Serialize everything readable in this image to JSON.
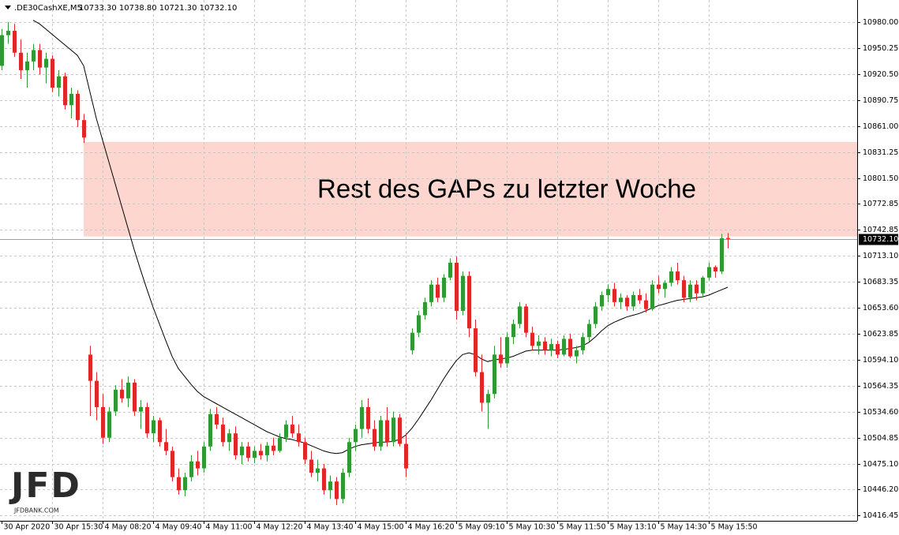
{
  "chart_data": {
    "type": "candlestick",
    "header": {
      "symbol": ".DE30CashXE,M5",
      "quote": "10733.30 10738.80 10721.30 10732.10"
    },
    "logo": {
      "text": "JFD",
      "site": "JFDBANK.COM"
    },
    "bull_color": "#2f9a35",
    "bear_color": "#e3262c",
    "ma_color": "#000000",
    "zone_color": "#fdd6d0",
    "grid": true,
    "xlim": [
      -0.25,
      135.5
    ],
    "ylim": [
      10410.1,
      11005.2
    ],
    "xticks": [
      {
        "value": 0,
        "label": "30 Apr 2020"
      },
      {
        "value": 8,
        "label": "30 Apr 15:30"
      },
      {
        "value": 16,
        "label": "4 May 08:20"
      },
      {
        "value": 24,
        "label": "4 May 09:40"
      },
      {
        "value": 32,
        "label": "4 May 11:00"
      },
      {
        "value": 40,
        "label": "4 May 12:20"
      },
      {
        "value": 48,
        "label": "4 May 13:40"
      },
      {
        "value": 56,
        "label": "4 May 15:00"
      },
      {
        "value": 64,
        "label": "4 May 16:20"
      },
      {
        "value": 72,
        "label": "5 May 09:10"
      },
      {
        "value": 80,
        "label": "5 May 10:30"
      },
      {
        "value": 88,
        "label": "5 May 11:50"
      },
      {
        "value": 96,
        "label": "5 May 13:10"
      },
      {
        "value": 104,
        "label": "5 May 14:30"
      },
      {
        "value": 112,
        "label": "5 May 15:50"
      }
    ],
    "yticks": [
      {
        "value": 10980,
        "label": "10980.00"
      },
      10950.25,
      {
        "value": 10920.5,
        "label": "10920.50"
      },
      10890.75,
      {
        "value": 10861,
        "label": "10861.00"
      },
      10831.25,
      {
        "value": 10801.5,
        "label": "10801.50"
      },
      10772.85,
      10742.85,
      {
        "value": 10713.1,
        "label": "10713.10"
      },
      10683.35,
      {
        "value": 10653.6,
        "label": "10653.60"
      },
      10623.85,
      {
        "value": 10594.1,
        "label": "10594.10"
      },
      10564.35,
      {
        "value": 10534.6,
        "label": "10534.60"
      },
      10504.85,
      {
        "value": 10475.1,
        "label": "10475.10"
      },
      {
        "value": 10446.2,
        "label": "10446.20"
      },
      10416.45
    ],
    "last_price": {
      "value": 10732.1,
      "label": "10732.10"
    },
    "zone": {
      "label": "Rest des GAPs zu letzter Woche",
      "range": [
        10735,
        10843
      ],
      "from_candle": 13
    },
    "ohlc": [
      [
        10930,
        10972,
        10925,
        10965
      ],
      [
        10965,
        10980,
        10955,
        10970
      ],
      [
        10970,
        10978,
        10940,
        10945
      ],
      [
        10945,
        10960,
        10915,
        10925
      ],
      [
        10925,
        10945,
        10905,
        10935
      ],
      [
        10935,
        10955,
        10925,
        10948
      ],
      [
        10948,
        10955,
        10920,
        10928
      ],
      [
        10928,
        10945,
        10910,
        10938
      ],
      [
        10938,
        10942,
        10900,
        10905
      ],
      [
        10905,
        10925,
        10895,
        10918
      ],
      [
        10918,
        10922,
        10880,
        10885
      ],
      [
        10885,
        10905,
        10870,
        10898
      ],
      [
        10898,
        10902,
        10860,
        10868
      ],
      [
        10868,
        10875,
        10842,
        10848
      ],
      [
        10600,
        10610,
        10530,
        10570
      ],
      [
        10570,
        10580,
        10525,
        10540
      ],
      [
        10540,
        10555,
        10498,
        10505
      ],
      [
        10505,
        10540,
        10500,
        10535
      ],
      [
        10535,
        10565,
        10530,
        10560
      ],
      [
        10560,
        10572,
        10545,
        10550
      ],
      [
        10550,
        10575,
        10540,
        10568
      ],
      [
        10568,
        10572,
        10530,
        10535
      ],
      [
        10535,
        10548,
        10515,
        10540
      ],
      [
        10540,
        10545,
        10505,
        10510
      ],
      [
        10510,
        10530,
        10500,
        10525
      ],
      [
        10525,
        10528,
        10495,
        10500
      ],
      [
        10500,
        10515,
        10485,
        10490
      ],
      [
        10490,
        10495,
        10455,
        10460
      ],
      [
        10460,
        10470,
        10440,
        10445
      ],
      [
        10445,
        10465,
        10438,
        10460
      ],
      [
        10460,
        10485,
        10455,
        10478
      ],
      [
        10478,
        10490,
        10462,
        10470
      ],
      [
        10470,
        10500,
        10465,
        10495
      ],
      [
        10495,
        10538,
        10490,
        10532
      ],
      [
        10532,
        10540,
        10515,
        10520
      ],
      [
        10520,
        10528,
        10495,
        10500
      ],
      [
        10500,
        10515,
        10490,
        10510
      ],
      [
        10510,
        10518,
        10480,
        10485
      ],
      [
        10485,
        10500,
        10475,
        10495
      ],
      [
        10495,
        10500,
        10478,
        10482
      ],
      [
        10482,
        10495,
        10476,
        10490
      ],
      [
        10490,
        10498,
        10480,
        10485
      ],
      [
        10485,
        10500,
        10478,
        10496
      ],
      [
        10496,
        10505,
        10485,
        10490
      ],
      [
        10490,
        10510,
        10488,
        10505
      ],
      [
        10505,
        10525,
        10500,
        10520
      ],
      [
        10520,
        10530,
        10505,
        10510
      ],
      [
        10510,
        10520,
        10495,
        10500
      ],
      [
        10500,
        10505,
        10475,
        10480
      ],
      [
        10480,
        10490,
        10460,
        10465
      ],
      [
        10465,
        10480,
        10455,
        10470
      ],
      [
        10470,
        10475,
        10440,
        10445
      ],
      [
        10445,
        10462,
        10435,
        10455
      ],
      [
        10455,
        10460,
        10428,
        10435
      ],
      [
        10435,
        10470,
        10430,
        10465
      ],
      [
        10465,
        10505,
        10460,
        10500
      ],
      [
        10500,
        10520,
        10490,
        10515
      ],
      [
        10515,
        10548,
        10505,
        10540
      ],
      [
        10540,
        10550,
        10510,
        10515
      ],
      [
        10515,
        10525,
        10490,
        10495
      ],
      [
        10495,
        10530,
        10490,
        10525
      ],
      [
        10525,
        10540,
        10495,
        10500
      ],
      [
        10500,
        10535,
        10495,
        10528
      ],
      [
        10528,
        10532,
        10495,
        10498
      ],
      [
        10498,
        10510,
        10460,
        10470
      ],
      [
        10605,
        10630,
        10600,
        10625
      ],
      [
        10625,
        10650,
        10620,
        10645
      ],
      [
        10645,
        10665,
        10640,
        10660
      ],
      [
        10660,
        10685,
        10655,
        10680
      ],
      [
        10680,
        10688,
        10660,
        10665
      ],
      [
        10665,
        10692,
        10660,
        10688
      ],
      [
        10688,
        10710,
        10685,
        10705
      ],
      [
        10705,
        10712,
        10640,
        10650
      ],
      [
        10650,
        10695,
        10645,
        10690
      ],
      [
        10690,
        10695,
        10620,
        10630
      ],
      [
        10630,
        10640,
        10575,
        10580
      ],
      [
        10580,
        10600,
        10535,
        10545
      ],
      [
        10545,
        10560,
        10515,
        10555
      ],
      [
        10555,
        10610,
        10550,
        10600
      ],
      [
        10600,
        10620,
        10585,
        10590
      ],
      [
        10590,
        10625,
        10585,
        10620
      ],
      [
        10620,
        10640,
        10612,
        10635
      ],
      [
        10635,
        10660,
        10630,
        10655
      ],
      [
        10655,
        10658,
        10620,
        10625
      ],
      [
        10625,
        10632,
        10605,
        10610
      ],
      [
        10610,
        10622,
        10600,
        10615
      ],
      [
        10615,
        10620,
        10600,
        10605
      ],
      [
        10605,
        10618,
        10598,
        10612
      ],
      [
        10612,
        10616,
        10596,
        10600
      ],
      [
        10600,
        10622,
        10598,
        10618
      ],
      [
        10618,
        10624,
        10596,
        10598
      ],
      [
        10598,
        10610,
        10590,
        10605
      ],
      [
        10605,
        10625,
        10600,
        10620
      ],
      [
        10620,
        10640,
        10615,
        10635
      ],
      [
        10635,
        10660,
        10630,
        10655
      ],
      [
        10655,
        10672,
        10650,
        10668
      ],
      [
        10668,
        10680,
        10660,
        10675
      ],
      [
        10675,
        10682,
        10655,
        10660
      ],
      [
        10660,
        10670,
        10652,
        10665
      ],
      [
        10665,
        10668,
        10650,
        10655
      ],
      [
        10655,
        10672,
        10650,
        10668
      ],
      [
        10668,
        10675,
        10658,
        10662
      ],
      [
        10662,
        10670,
        10648,
        10652
      ],
      [
        10652,
        10685,
        10650,
        10680
      ],
      [
        10680,
        10690,
        10670,
        10675
      ],
      [
        10675,
        10685,
        10665,
        10682
      ],
      [
        10682,
        10700,
        10678,
        10695
      ],
      [
        10695,
        10705,
        10680,
        10685
      ],
      [
        10685,
        10690,
        10660,
        10665
      ],
      [
        10665,
        10685,
        10660,
        10680
      ],
      [
        10680,
        10685,
        10662,
        10670
      ],
      [
        10670,
        10690,
        10665,
        10688
      ],
      [
        10688,
        10705,
        10685,
        10700
      ],
      [
        10700,
        10702,
        10688,
        10695
      ],
      [
        10695,
        10738,
        10692,
        10733
      ],
      [
        10733.3,
        10738.8,
        10721.3,
        10732.1
      ]
    ],
    "ma": [
      null,
      null,
      null,
      null,
      null,
      10982,
      10978,
      10972,
      10966,
      10960,
      10954,
      10948,
      10942,
      10930,
      10900,
      10870,
      10845,
      10820,
      10795,
      10770,
      10745,
      10720,
      10697,
      10675,
      10654,
      10635,
      10616,
      10598,
      10584,
      10575,
      10566,
      10558,
      10552,
      10548,
      10544,
      10540,
      10536,
      10532,
      10528,
      10524,
      10520,
      10516,
      10512,
      10509,
      10506,
      10504,
      10503,
      10501,
      10499,
      10496,
      10493,
      10490,
      10488,
      10487,
      10488,
      10492,
      10495,
      10497,
      10498,
      10499,
      10500,
      10500,
      10501,
      10503,
      10508,
      10516,
      10526,
      10537,
      10548,
      10560,
      10572,
      10583,
      10593,
      10600,
      10602,
      10600,
      10595,
      10592,
      10594,
      10595,
      10596,
      10598,
      10601,
      10604,
      10605,
      10605,
      10605,
      10605,
      10605,
      10606,
      10607,
      10608,
      10610,
      10614,
      10620,
      10627,
      10633,
      10637,
      10640,
      10643,
      10645,
      10647,
      10650,
      10653,
      10656,
      10658,
      10660,
      10662,
      10663,
      10664,
      10665,
      10666,
      10668,
      10671,
      10674,
      10677
    ]
  }
}
